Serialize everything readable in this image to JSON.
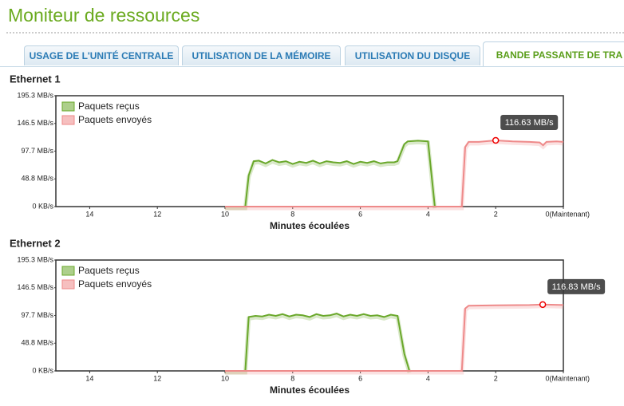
{
  "title": "Moniteur de ressources",
  "tabs": [
    "USAGE DE L'UNITÉ CENTRALE",
    "UTILISATION DE LA MÉMOIRE",
    "UTILISATION DU DISQUE",
    "BANDE PASSANTE DE TRA"
  ],
  "active_tab": 3,
  "chart_data": [
    {
      "type": "line",
      "title": "Ethernet 1",
      "x_label": "Minutes écoulées",
      "xlim": [
        15,
        0
      ],
      "xticks": [
        14,
        12,
        10,
        8,
        6,
        4,
        2,
        {
          "value": 0,
          "label": "0(Maintenant)"
        }
      ],
      "ylim": [
        0,
        195.3
      ],
      "yticks": [
        {
          "value": 0,
          "label": "0 KB/s"
        },
        {
          "value": 48.8,
          "label": "48.8 MB/s"
        },
        {
          "value": 97.7,
          "label": "97.7 MB/s"
        },
        {
          "value": 146.5,
          "label": "146.5 MB/s"
        },
        {
          "value": 195.3,
          "label": "195.3 MB/s"
        }
      ],
      "legend": "top-left",
      "series": [
        {
          "name": "Paquets reçus",
          "color": "#6aa82b",
          "x": [
            10,
            9.4,
            9.3,
            9.15,
            9.0,
            8.8,
            8.6,
            8.4,
            8.2,
            8.0,
            7.8,
            7.6,
            7.4,
            7.2,
            7.0,
            6.8,
            6.6,
            6.4,
            6.2,
            6.0,
            5.8,
            5.6,
            5.4,
            5.2,
            5.0,
            4.9,
            4.7,
            4.6,
            4.3,
            4.0,
            3.8
          ],
          "values": [
            0,
            0,
            55,
            80,
            81,
            76,
            82,
            78,
            80,
            75,
            79,
            77,
            81,
            76,
            80,
            78,
            77,
            80,
            75,
            79,
            77,
            80,
            76,
            78,
            78,
            80,
            110,
            115,
            116,
            115,
            0
          ]
        },
        {
          "name": "Paquets envoyés",
          "color": "#ee8a8a",
          "x": [
            10,
            9,
            8,
            7,
            6,
            5,
            4,
            3.0,
            2.9,
            2.8,
            2.5,
            2.0,
            1.5,
            1.0,
            0.7,
            0.6,
            0.5,
            0.2,
            0
          ],
          "values": [
            0,
            0,
            0,
            0,
            0,
            0,
            0,
            0,
            105,
            114,
            114,
            116.63,
            115,
            114,
            113,
            108,
            114,
            115,
            114
          ]
        }
      ],
      "tooltip": {
        "x": 2,
        "value": 116.63,
        "label": "116.63 MB/s"
      }
    },
    {
      "type": "line",
      "title": "Ethernet 2",
      "x_label": "Minutes écoulées",
      "xlim": [
        15,
        0
      ],
      "xticks": [
        14,
        12,
        10,
        8,
        6,
        4,
        2,
        {
          "value": 0,
          "label": "0(Maintenant)"
        }
      ],
      "ylim": [
        0,
        195.3
      ],
      "yticks": [
        {
          "value": 0,
          "label": "0 KB/s"
        },
        {
          "value": 48.8,
          "label": "48.8 MB/s"
        },
        {
          "value": 97.7,
          "label": "97.7 MB/s"
        },
        {
          "value": 146.5,
          "label": "146.5 MB/s"
        },
        {
          "value": 195.3,
          "label": "195.3 MB/s"
        }
      ],
      "legend": "top-left",
      "series": [
        {
          "name": "Paquets reçus",
          "color": "#6aa82b",
          "x": [
            10,
            9.4,
            9.3,
            9.1,
            8.9,
            8.7,
            8.5,
            8.3,
            8.1,
            7.9,
            7.7,
            7.5,
            7.3,
            7.1,
            6.9,
            6.7,
            6.5,
            6.3,
            6.1,
            5.9,
            5.7,
            5.5,
            5.3,
            5.1,
            4.9,
            4.7,
            4.55
          ],
          "values": [
            0,
            0,
            95,
            97,
            96,
            99,
            97,
            100,
            96,
            99,
            98,
            95,
            100,
            97,
            98,
            101,
            96,
            99,
            97,
            100,
            97,
            98,
            95,
            99,
            97,
            30,
            0
          ]
        },
        {
          "name": "Paquets envoyés",
          "color": "#ee8a8a",
          "x": [
            10,
            9,
            8,
            7,
            6,
            5,
            4,
            3.0,
            2.9,
            2.8,
            2.0,
            1.0,
            0.61,
            0
          ],
          "values": [
            0,
            0,
            0,
            0,
            0,
            0,
            0,
            0,
            110,
            115,
            115.5,
            116,
            116.83,
            116
          ]
        }
      ],
      "tooltip": {
        "x": 0.61,
        "value": 116.83,
        "label": "116.83 MB/s"
      }
    }
  ]
}
